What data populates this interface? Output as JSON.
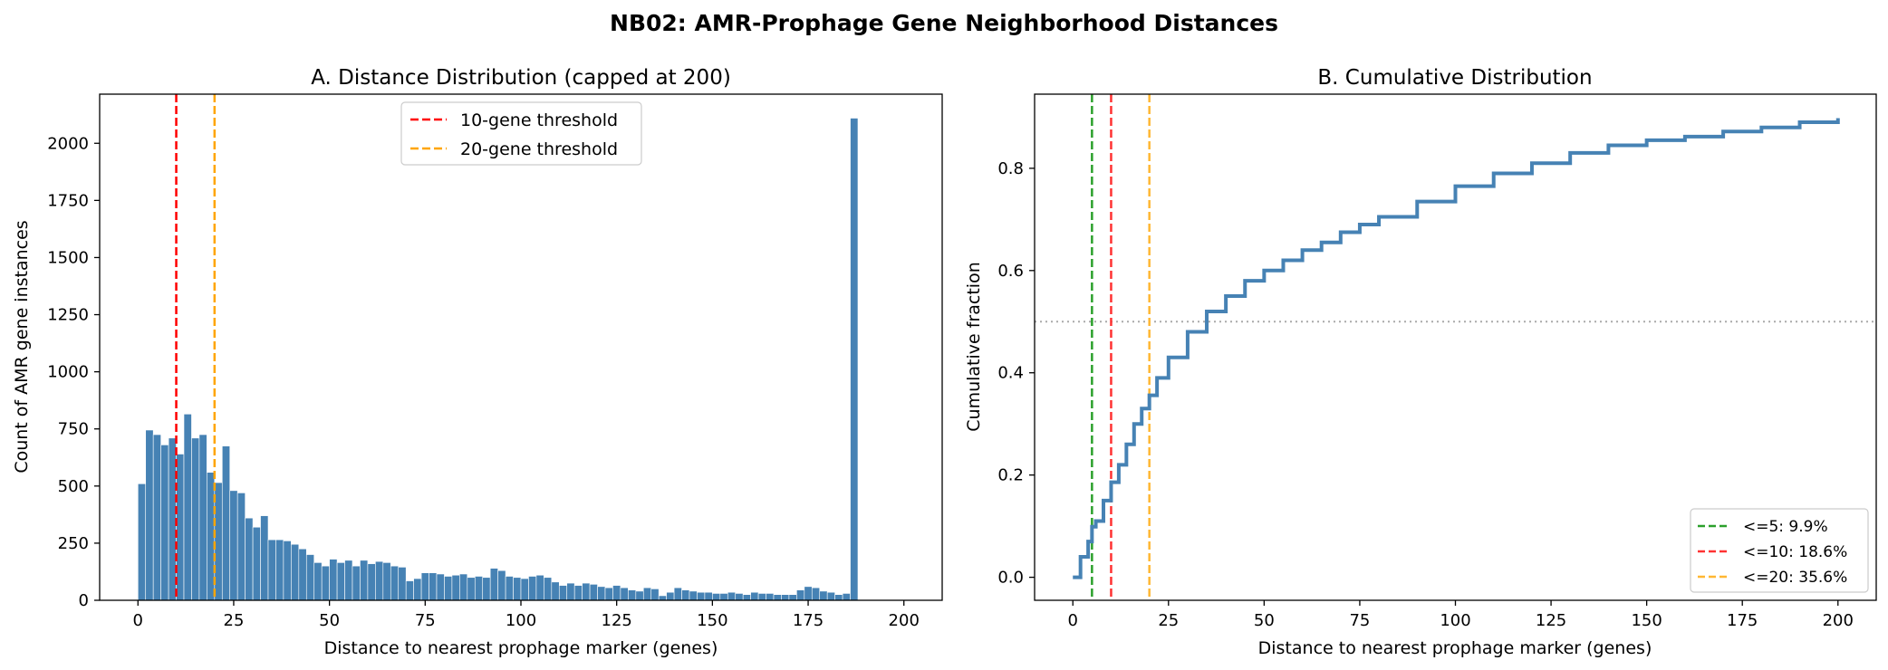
{
  "figure": {
    "suptitle": "NB02: AMR-Prophage Gene Neighborhood Distances"
  },
  "chart_data": [
    {
      "type": "bar",
      "title": "A. Distance Distribution (capped at 200)",
      "xlabel": "Distance to nearest prophage marker (genes)",
      "ylabel": "Count of AMR gene instances",
      "xlim": [
        -10,
        210
      ],
      "ylim": [
        0,
        2215
      ],
      "xticks": [
        0,
        25,
        50,
        75,
        100,
        125,
        150,
        175,
        200
      ],
      "yticks": [
        0,
        250,
        500,
        750,
        1000,
        1250,
        1500,
        1750,
        2000
      ],
      "grid": false,
      "legend_position": "top-center",
      "bar_color": "#4682b4",
      "bin_width": 2,
      "bin_starts": [
        0,
        2,
        4,
        6,
        8,
        10,
        12,
        14,
        16,
        18,
        20,
        22,
        24,
        26,
        28,
        30,
        32,
        34,
        36,
        38,
        40,
        42,
        44,
        46,
        48,
        50,
        52,
        54,
        56,
        58,
        60,
        62,
        64,
        66,
        68,
        70,
        72,
        74,
        76,
        78,
        80,
        82,
        84,
        86,
        88,
        90,
        92,
        94,
        96,
        98,
        100,
        102,
        104,
        106,
        108,
        110,
        112,
        114,
        116,
        118,
        120,
        122,
        124,
        126,
        128,
        130,
        132,
        134,
        136,
        138,
        140,
        142,
        144,
        146,
        148,
        150,
        152,
        154,
        156,
        158,
        160,
        162,
        164,
        166,
        168,
        170,
        172,
        174,
        176,
        178,
        180,
        182,
        184,
        186,
        188,
        190,
        192,
        194,
        196,
        198
      ],
      "values": [
        510,
        745,
        725,
        680,
        710,
        640,
        815,
        710,
        725,
        560,
        515,
        675,
        480,
        470,
        360,
        320,
        370,
        265,
        265,
        260,
        245,
        225,
        200,
        165,
        150,
        180,
        165,
        175,
        150,
        175,
        160,
        170,
        165,
        150,
        145,
        85,
        95,
        120,
        120,
        115,
        105,
        110,
        115,
        100,
        105,
        100,
        140,
        130,
        105,
        100,
        95,
        105,
        110,
        100,
        80,
        65,
        75,
        65,
        75,
        70,
        60,
        55,
        65,
        55,
        45,
        40,
        55,
        50,
        20,
        35,
        55,
        45,
        40,
        35,
        35,
        30,
        30,
        35,
        30,
        25,
        35,
        30,
        30,
        25,
        25,
        25,
        45,
        60,
        55,
        40,
        35,
        25,
        30,
        2110,
        0,
        0,
        0,
        0,
        0,
        0
      ],
      "annotations": [
        {
          "type": "vline",
          "x": 10,
          "color": "#ff0000",
          "style": "dashed",
          "label": "10-gene threshold"
        },
        {
          "type": "vline",
          "x": 20,
          "color": "#ffa500",
          "style": "dashed",
          "label": "20-gene threshold"
        }
      ]
    },
    {
      "type": "line",
      "title": "B. Cumulative Distribution",
      "xlabel": "Distance to nearest prophage marker (genes)",
      "ylabel": "Cumulative fraction",
      "xlim": [
        -10,
        210
      ],
      "ylim": [
        -0.045,
        0.945
      ],
      "xticks": [
        0,
        25,
        50,
        75,
        100,
        125,
        150,
        175,
        200
      ],
      "yticks": [
        0.0,
        0.2,
        0.4,
        0.6,
        0.8
      ],
      "grid": false,
      "legend_position": "bottom-right",
      "series": [
        {
          "color": "#4682b4",
          "step": true,
          "x": [
            0,
            2,
            4,
            5,
            6,
            8,
            10,
            12,
            14,
            16,
            18,
            20,
            22,
            25,
            30,
            35,
            40,
            45,
            50,
            55,
            60,
            65,
            70,
            75,
            80,
            90,
            100,
            110,
            120,
            130,
            140,
            150,
            160,
            170,
            180,
            190,
            200
          ],
          "values": [
            0.0,
            0.04,
            0.07,
            0.099,
            0.11,
            0.15,
            0.186,
            0.22,
            0.26,
            0.3,
            0.33,
            0.356,
            0.39,
            0.43,
            0.48,
            0.52,
            0.55,
            0.58,
            0.6,
            0.62,
            0.64,
            0.655,
            0.675,
            0.69,
            0.705,
            0.735,
            0.765,
            0.79,
            0.81,
            0.83,
            0.845,
            0.855,
            0.862,
            0.872,
            0.88,
            0.89,
            0.898
          ]
        }
      ],
      "annotations": [
        {
          "type": "hline",
          "y": 0.5,
          "color": "#aaaaaa",
          "style": "dotted"
        },
        {
          "type": "vline",
          "x": 5,
          "color": "#2ca02c",
          "style": "dashed",
          "label": "<=5: 9.9%"
        },
        {
          "type": "vline",
          "x": 10,
          "color": "#ff3333",
          "style": "dashed",
          "label": "<=10: 18.6%"
        },
        {
          "type": "vline",
          "x": 20,
          "color": "#ffb733",
          "style": "dashed",
          "label": "<=20: 35.6%"
        }
      ]
    }
  ]
}
